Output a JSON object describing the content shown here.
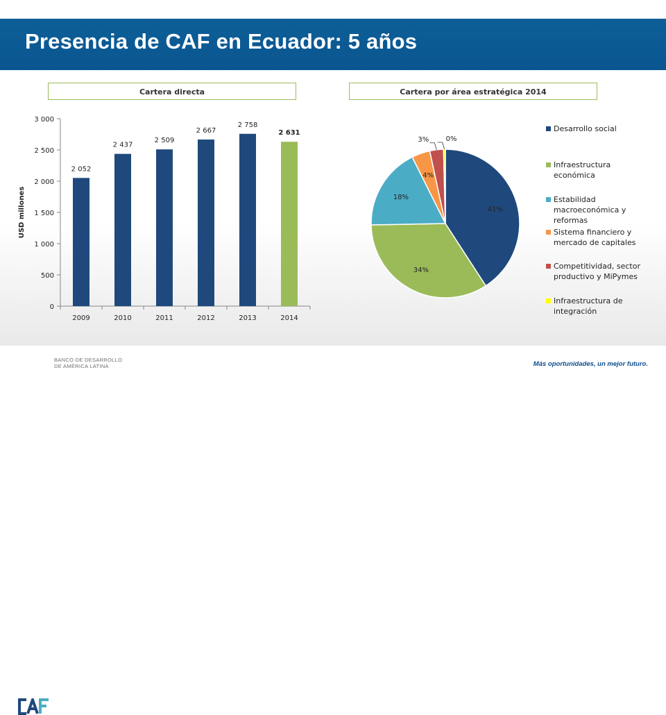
{
  "header": {
    "title": "Presencia de CAF en Ecuador: 5 años"
  },
  "panels": {
    "left_title": "Cartera directa",
    "right_title": "Cartera por área estratégica 2014"
  },
  "footer": {
    "logo_line1": "BANCO DE DESARROLLO",
    "logo_line2": "DE AMÉRICA LATINA",
    "tagline": "Más oportunidades, un mejor futuro."
  },
  "colors": {
    "header_blue": "#0d5f98",
    "bar_blue": "#1f497d",
    "bar_green": "#9bbb59",
    "panel_border": "#9bbb59"
  },
  "chart_data": [
    {
      "type": "bar",
      "categories": [
        "2009",
        "2010",
        "2011",
        "2012",
        "2013",
        "2014"
      ],
      "values": [
        2052,
        2437,
        2509,
        2667,
        2758,
        2631
      ],
      "data_labels": [
        "2 052",
        "2 437",
        "2 509",
        "2 667",
        "2 758",
        "2 631"
      ],
      "bar_colors": [
        "#1f497d",
        "#1f497d",
        "#1f497d",
        "#1f497d",
        "#1f497d",
        "#9bbb59"
      ],
      "highlight_index": 5,
      "ylabel": "USD millones",
      "ylim": [
        0,
        3000
      ],
      "yticks": [
        0,
        500,
        1000,
        1500,
        2000,
        2500,
        3000
      ],
      "ytick_labels": [
        "0",
        "500",
        "1 000",
        "1 500",
        "2 000",
        "2 500",
        "3 000"
      ],
      "grid": false
    },
    {
      "type": "pie",
      "labels": [
        "Desarrollo social",
        "Infraestructura económica",
        "Estabilidad macroeconómica y reformas",
        "Sistema financiero y mercado de capitales",
        "Competitividad, sector productivo y MiPymes",
        "Infraestructura de integración"
      ],
      "values": [
        41,
        34,
        18,
        4,
        3,
        0.4
      ],
      "value_labels": [
        "41%",
        "34%",
        "18%",
        "4%",
        "3%",
        "0%"
      ],
      "colors": [
        "#1f497d",
        "#9bbb59",
        "#4bacc6",
        "#f79646",
        "#c0504d",
        "#ffff00"
      ],
      "legend": "right"
    }
  ]
}
